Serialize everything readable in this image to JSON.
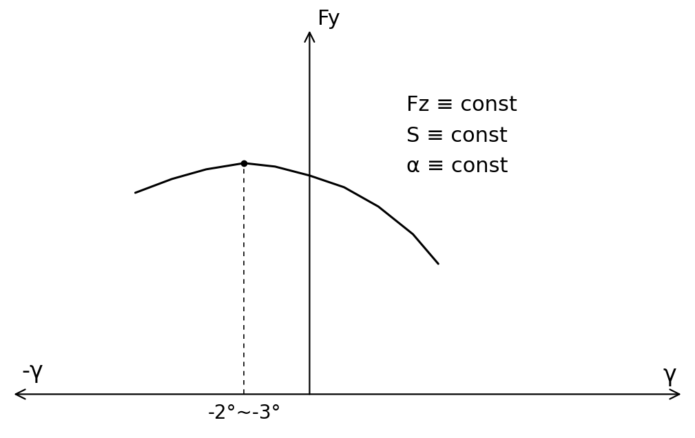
{
  "chart_data": {
    "type": "line",
    "y_label": "Fy",
    "x_label": "γ",
    "x_label_negative": "-γ",
    "annotations": [
      "Fz ≡ const",
      "S ≡ const",
      "α ≡ const"
    ],
    "x": [
      -6.66,
      -5.26,
      -3.95,
      -2.5,
      -1.32,
      0,
      1.32,
      2.63,
      3.95,
      4.92
    ],
    "values": [
      2.92,
      3.12,
      3.26,
      3.35,
      3.3,
      3.17,
      3.0,
      2.72,
      2.32,
      1.89
    ],
    "color": "#000000",
    "xlim": [
      -11.3,
      14.2
    ],
    "ylim": [
      0,
      5.27
    ],
    "xticks": [
      {
        "value": -2.5,
        "label": "-2°~-3°"
      }
    ],
    "yticks": [],
    "tick_labels": "x",
    "grid": false
  }
}
